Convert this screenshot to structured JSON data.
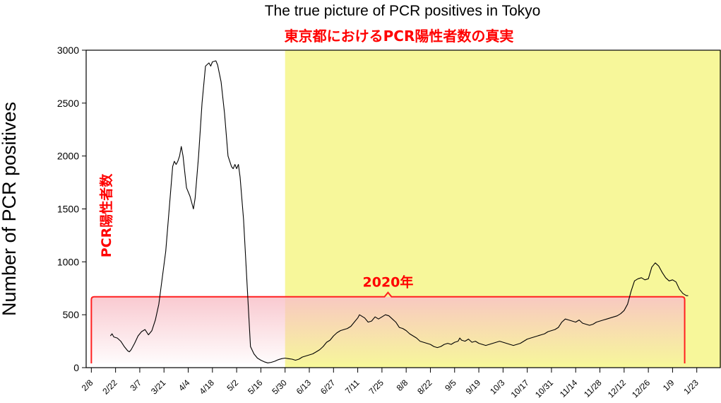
{
  "chart_data": {
    "type": "line",
    "title": "The true picture of PCR positives in Tokyo",
    "subtitle": "東京都におけるPCR陽性者数の真実",
    "xlabel": "",
    "ylabel": "Number of PCR positives",
    "ylim": [
      0,
      3000
    ],
    "yticks": [
      0,
      500,
      1000,
      1500,
      2000,
      2500,
      3000
    ],
    "x_tick_labels": [
      "2/8",
      "2/22",
      "3/7",
      "3/21",
      "4/4",
      "4/18",
      "5/2",
      "5/16",
      "5/30",
      "6/13",
      "6/27",
      "7/11",
      "7/25",
      "8/8",
      "8/22",
      "9/5",
      "9/19",
      "10/3",
      "10/17",
      "10/31",
      "11/14",
      "11/28",
      "12/12",
      "12/26",
      "1/9",
      "1/23"
    ],
    "x_tick_start_day": 0,
    "x_tick_step_days": 14,
    "x_range_days": [
      -3,
      364
    ],
    "grid": false,
    "legend": "none",
    "highlight_region": {
      "from_day": 112,
      "to_day": 364,
      "color": "#f7f79a"
    },
    "bracket": {
      "from_day": 0,
      "to_day": 343,
      "y_top": 670,
      "label": "2020年"
    },
    "vertical_note": "PCR陽性者数",
    "series": [
      {
        "color": "#000000",
        "points": [
          [
            11,
            300
          ],
          [
            12,
            320
          ],
          [
            13,
            290
          ],
          [
            15,
            280
          ],
          [
            17,
            250
          ],
          [
            19,
            200
          ],
          [
            21,
            160
          ],
          [
            22,
            150
          ],
          [
            23,
            170
          ],
          [
            25,
            230
          ],
          [
            27,
            300
          ],
          [
            29,
            340
          ],
          [
            31,
            360
          ],
          [
            33,
            310
          ],
          [
            35,
            350
          ],
          [
            37,
            450
          ],
          [
            39,
            600
          ],
          [
            41,
            850
          ],
          [
            43,
            1100
          ],
          [
            45,
            1500
          ],
          [
            47,
            1900
          ],
          [
            48,
            1950
          ],
          [
            49,
            1920
          ],
          [
            50,
            1950
          ],
          [
            51,
            2000
          ],
          [
            52,
            2090
          ],
          [
            53,
            2000
          ],
          [
            54,
            1850
          ],
          [
            55,
            1700
          ],
          [
            57,
            1620
          ],
          [
            59,
            1500
          ],
          [
            60,
            1600
          ],
          [
            62,
            2000
          ],
          [
            64,
            2500
          ],
          [
            66,
            2850
          ],
          [
            68,
            2880
          ],
          [
            69,
            2850
          ],
          [
            70,
            2890
          ],
          [
            72,
            2900
          ],
          [
            73,
            2860
          ],
          [
            75,
            2700
          ],
          [
            77,
            2400
          ],
          [
            79,
            2000
          ],
          [
            81,
            1900
          ],
          [
            82,
            1880
          ],
          [
            83,
            1920
          ],
          [
            84,
            1880
          ],
          [
            85,
            1920
          ],
          [
            86,
            1800
          ],
          [
            88,
            1400
          ],
          [
            90,
            800
          ],
          [
            92,
            200
          ],
          [
            94,
            130
          ],
          [
            96,
            90
          ],
          [
            98,
            70
          ],
          [
            100,
            55
          ],
          [
            102,
            45
          ],
          [
            104,
            50
          ],
          [
            106,
            60
          ],
          [
            108,
            75
          ],
          [
            110,
            85
          ],
          [
            112,
            90
          ],
          [
            114,
            85
          ],
          [
            116,
            80
          ],
          [
            118,
            70
          ],
          [
            120,
            80
          ],
          [
            122,
            100
          ],
          [
            124,
            110
          ],
          [
            126,
            120
          ],
          [
            128,
            130
          ],
          [
            130,
            150
          ],
          [
            132,
            170
          ],
          [
            134,
            200
          ],
          [
            136,
            240
          ],
          [
            138,
            260
          ],
          [
            140,
            300
          ],
          [
            142,
            330
          ],
          [
            144,
            350
          ],
          [
            146,
            360
          ],
          [
            148,
            370
          ],
          [
            150,
            390
          ],
          [
            152,
            430
          ],
          [
            154,
            470
          ],
          [
            155,
            500
          ],
          [
            156,
            490
          ],
          [
            158,
            470
          ],
          [
            160,
            430
          ],
          [
            162,
            440
          ],
          [
            164,
            480
          ],
          [
            166,
            460
          ],
          [
            168,
            480
          ],
          [
            170,
            500
          ],
          [
            172,
            490
          ],
          [
            174,
            460
          ],
          [
            176,
            430
          ],
          [
            178,
            380
          ],
          [
            180,
            370
          ],
          [
            182,
            350
          ],
          [
            184,
            320
          ],
          [
            186,
            300
          ],
          [
            188,
            280
          ],
          [
            190,
            250
          ],
          [
            192,
            240
          ],
          [
            194,
            230
          ],
          [
            196,
            220
          ],
          [
            198,
            200
          ],
          [
            200,
            190
          ],
          [
            202,
            200
          ],
          [
            204,
            220
          ],
          [
            206,
            230
          ],
          [
            208,
            220
          ],
          [
            210,
            240
          ],
          [
            212,
            250
          ],
          [
            213,
            280
          ],
          [
            214,
            260
          ],
          [
            216,
            250
          ],
          [
            218,
            270
          ],
          [
            220,
            240
          ],
          [
            222,
            250
          ],
          [
            224,
            230
          ],
          [
            226,
            220
          ],
          [
            228,
            210
          ],
          [
            230,
            220
          ],
          [
            232,
            230
          ],
          [
            234,
            240
          ],
          [
            236,
            250
          ],
          [
            238,
            240
          ],
          [
            240,
            230
          ],
          [
            242,
            220
          ],
          [
            244,
            210
          ],
          [
            246,
            220
          ],
          [
            248,
            230
          ],
          [
            250,
            250
          ],
          [
            252,
            270
          ],
          [
            254,
            280
          ],
          [
            256,
            290
          ],
          [
            258,
            300
          ],
          [
            260,
            310
          ],
          [
            262,
            320
          ],
          [
            264,
            340
          ],
          [
            266,
            350
          ],
          [
            268,
            360
          ],
          [
            270,
            380
          ],
          [
            272,
            430
          ],
          [
            274,
            460
          ],
          [
            276,
            450
          ],
          [
            278,
            440
          ],
          [
            280,
            430
          ],
          [
            282,
            450
          ],
          [
            284,
            420
          ],
          [
            286,
            410
          ],
          [
            288,
            400
          ],
          [
            290,
            410
          ],
          [
            292,
            430
          ],
          [
            294,
            440
          ],
          [
            296,
            450
          ],
          [
            298,
            460
          ],
          [
            300,
            470
          ],
          [
            302,
            480
          ],
          [
            304,
            490
          ],
          [
            306,
            510
          ],
          [
            308,
            540
          ],
          [
            310,
            600
          ],
          [
            312,
            720
          ],
          [
            314,
            820
          ],
          [
            316,
            840
          ],
          [
            318,
            850
          ],
          [
            320,
            830
          ],
          [
            322,
            840
          ],
          [
            324,
            950
          ],
          [
            326,
            990
          ],
          [
            328,
            960
          ],
          [
            330,
            900
          ],
          [
            332,
            850
          ],
          [
            334,
            820
          ],
          [
            336,
            830
          ],
          [
            338,
            810
          ],
          [
            340,
            740
          ],
          [
            342,
            700
          ],
          [
            344,
            680
          ],
          [
            345,
            680
          ]
        ]
      }
    ]
  }
}
